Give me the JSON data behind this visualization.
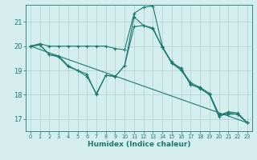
{
  "xlabel": "Humidex (Indice chaleur)",
  "bg_color": "#d4eeee",
  "grid_color": "#b0d0d0",
  "line_color": "#1a7a6e",
  "xlim": [
    -0.5,
    23.5
  ],
  "ylim": [
    16.5,
    21.7
  ],
  "yticks": [
    17,
    18,
    19,
    20,
    21
  ],
  "xticks": [
    0,
    1,
    2,
    3,
    4,
    5,
    6,
    7,
    8,
    9,
    10,
    11,
    12,
    13,
    14,
    15,
    16,
    17,
    18,
    19,
    20,
    21,
    22,
    23
  ],
  "lines": [
    {
      "x": [
        0,
        1,
        2,
        3,
        4,
        5,
        6,
        7,
        8,
        9,
        10,
        11,
        12,
        13,
        14,
        15,
        16,
        17,
        18,
        19,
        20,
        21,
        22,
        23
      ],
      "y": [
        20.0,
        20.1,
        20.0,
        20.0,
        20.0,
        20.0,
        20.0,
        20.0,
        20.0,
        19.9,
        19.85,
        21.35,
        21.6,
        21.65,
        20.0,
        19.3,
        19.1,
        18.4,
        18.3,
        18.05,
        17.2,
        17.2,
        17.2,
        16.85
      ]
    },
    {
      "x": [
        0,
        1,
        2,
        3,
        4,
        5,
        6,
        7,
        8,
        9,
        10,
        11,
        12,
        13,
        14,
        15,
        16,
        17,
        18,
        19,
        20,
        21,
        22,
        23
      ],
      "y": [
        20.0,
        20.05,
        19.65,
        19.55,
        19.15,
        19.0,
        18.75,
        18.05,
        18.8,
        18.75,
        19.2,
        21.2,
        20.85,
        20.7,
        19.95,
        19.3,
        19.0,
        18.45,
        18.25,
        18.0,
        17.1,
        17.25,
        17.2,
        16.85
      ]
    },
    {
      "x": [
        0,
        23
      ],
      "y": [
        20.0,
        16.85
      ]
    },
    {
      "x": [
        0,
        1,
        2,
        3,
        4,
        5,
        6,
        7,
        8,
        9,
        10,
        11,
        12,
        13,
        14,
        15,
        16,
        17,
        18,
        19,
        20,
        21,
        22,
        23
      ],
      "y": [
        20.0,
        20.05,
        19.65,
        19.6,
        19.2,
        19.0,
        18.85,
        18.0,
        18.8,
        18.75,
        19.2,
        20.8,
        20.85,
        20.75,
        19.95,
        19.35,
        19.05,
        18.5,
        18.3,
        18.05,
        17.15,
        17.3,
        17.25,
        16.85
      ]
    }
  ]
}
